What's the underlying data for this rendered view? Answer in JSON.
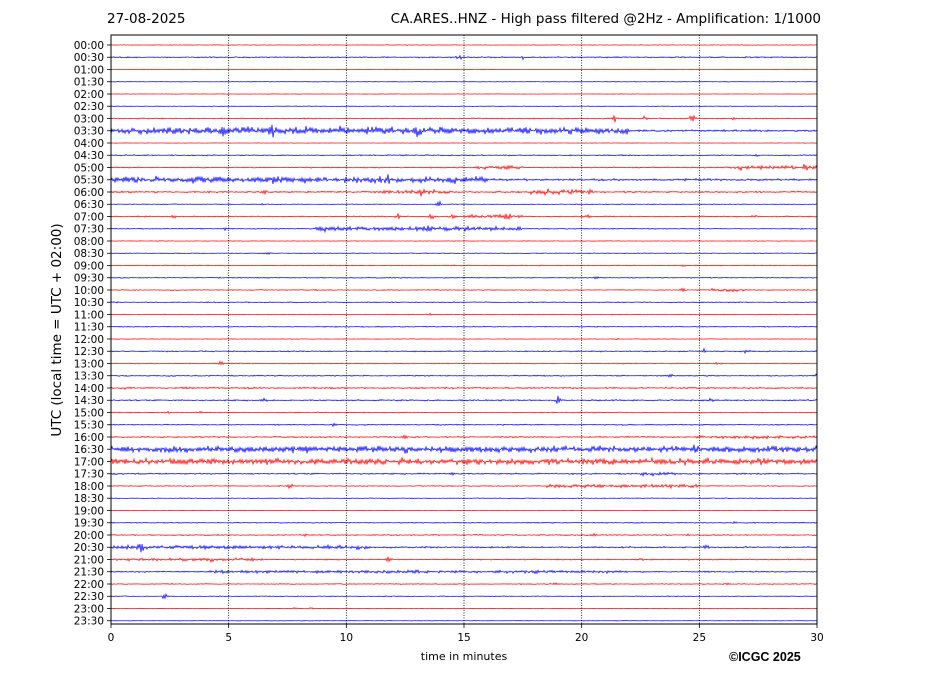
{
  "header": {
    "date": "27-08-2025",
    "title": "CA.ARES..HNZ - High pass filtered @2Hz - Amplification: 1/1000"
  },
  "footer": {
    "copyright": "©ICGC 2025"
  },
  "chart_data": {
    "type": "line",
    "title": "CA.ARES..HNZ - High pass filtered @2Hz - Amplification: 1/1000",
    "xlabel": "time in minutes",
    "ylabel": "UTC (local time = UTC + 02:00)",
    "xlim": [
      0,
      30
    ],
    "x_ticks": [
      "0",
      "5",
      "10",
      "15",
      "20",
      "25",
      "30"
    ],
    "y_ticks": [
      "00:00",
      "00:30",
      "01:00",
      "01:30",
      "02:00",
      "02:30",
      "03:00",
      "03:30",
      "04:00",
      "04:30",
      "05:00",
      "05:30",
      "06:00",
      "06:30",
      "07:00",
      "07:30",
      "08:00",
      "08:30",
      "09:00",
      "09:30",
      "10:00",
      "10:30",
      "11:00",
      "11:30",
      "12:00",
      "12:30",
      "13:00",
      "13:30",
      "14:00",
      "14:30",
      "15:00",
      "15:30",
      "16:00",
      "16:30",
      "17:00",
      "17:30",
      "18:00",
      "18:30",
      "19:00",
      "19:30",
      "20:00",
      "20:30",
      "21:00",
      "21:30",
      "22:00",
      "22:30",
      "23:00",
      "23:30"
    ],
    "grid": {
      "vertical_dotted_at": [
        5,
        10,
        15,
        20,
        25
      ]
    },
    "colors": {
      "even_rows": "#ff0000",
      "odd_rows": "#0000ff"
    },
    "traces": [
      {
        "row": "00:00",
        "noise": 0.3,
        "events": []
      },
      {
        "row": "00:30",
        "noise": 0.6,
        "events": [
          [
            14.8,
            3
          ],
          [
            17.5,
            2.5
          ]
        ]
      },
      {
        "row": "01:00",
        "noise": 0.2,
        "events": []
      },
      {
        "row": "01:30",
        "noise": 0.3,
        "events": []
      },
      {
        "row": "02:00",
        "noise": 0.2,
        "events": []
      },
      {
        "row": "02:30",
        "noise": 0.3,
        "events": []
      },
      {
        "row": "03:00",
        "noise": 0.6,
        "events": [
          [
            21.4,
            4
          ],
          [
            22.7,
            3
          ],
          [
            24.7,
            7
          ],
          [
            26.5,
            2
          ]
        ]
      },
      {
        "row": "03:30",
        "noise": 1.0,
        "events": [
          [
            2.5,
            3.5
          ],
          [
            4.8,
            4.5
          ],
          [
            6.8,
            8
          ],
          [
            8.4,
            5
          ],
          [
            9.7,
            4.5
          ],
          [
            11.3,
            3.5
          ],
          [
            13.0,
            3.5
          ]
        ],
        "bursts": [
          [
            0,
            22,
            3
          ]
        ]
      },
      {
        "row": "04:00",
        "noise": 0.2,
        "events": []
      },
      {
        "row": "04:30",
        "noise": 0.6,
        "events": [
          [
            27.5,
            2
          ]
        ]
      },
      {
        "row": "05:00",
        "noise": 0.6,
        "events": [
          [
            26.8,
            2.5
          ],
          [
            29.5,
            2.5
          ]
        ],
        "bursts": [
          [
            15.5,
            17.5,
            1.3
          ],
          [
            26,
            30,
            1.6
          ]
        ]
      },
      {
        "row": "05:30",
        "noise": 1.0,
        "events": [
          [
            4.5,
            3
          ],
          [
            7.0,
            3
          ],
          [
            11.8,
            3
          ]
        ],
        "bursts": [
          [
            0,
            16,
            2.6
          ]
        ]
      },
      {
        "row": "06:00",
        "noise": 0.8,
        "events": [
          [
            6.5,
            2
          ],
          [
            13.2,
            4
          ],
          [
            18.5,
            2.5
          ]
        ],
        "bursts": [
          [
            11.5,
            14.5,
            1.5
          ],
          [
            17.8,
            20.5,
            2.0
          ]
        ]
      },
      {
        "row": "06:30",
        "noise": 0.4,
        "events": [
          [
            13.9,
            5
          ],
          [
            6.5,
            1.5
          ]
        ]
      },
      {
        "row": "07:00",
        "noise": 0.6,
        "events": [
          [
            2.6,
            4
          ],
          [
            12.2,
            3.5
          ],
          [
            13.6,
            4
          ],
          [
            14.5,
            3
          ],
          [
            16.8,
            3
          ],
          [
            20.2,
            2.5
          ],
          [
            27.3,
            2
          ]
        ],
        "bursts": [
          [
            15,
            17.5,
            1.6
          ]
        ]
      },
      {
        "row": "07:30",
        "noise": 0.5,
        "events": [
          [
            4.8,
            2.5
          ],
          [
            9.0,
            2.5
          ],
          [
            13.5,
            3
          ]
        ],
        "bursts": [
          [
            8.7,
            17.5,
            1.9
          ]
        ]
      },
      {
        "row": "08:00",
        "noise": 0.3,
        "events": []
      },
      {
        "row": "08:30",
        "noise": 0.4,
        "events": [
          [
            6.7,
            1.5
          ]
        ]
      },
      {
        "row": "09:00",
        "noise": 0.5,
        "events": [
          [
            24.3,
            1.5
          ]
        ]
      },
      {
        "row": "09:30",
        "noise": 0.5,
        "events": [
          [
            20.6,
            1.5
          ]
        ]
      },
      {
        "row": "10:00",
        "noise": 0.5,
        "events": [
          [
            24.3,
            2
          ]
        ],
        "bursts": [
          [
            25.5,
            27,
            1.1
          ]
        ]
      },
      {
        "row": "10:30",
        "noise": 0.5,
        "events": [
          [
            0.2,
            1.5
          ]
        ]
      },
      {
        "row": "11:00",
        "noise": 0.4,
        "events": [
          [
            13.5,
            1.5
          ]
        ]
      },
      {
        "row": "11:30",
        "noise": 0.5,
        "events": []
      },
      {
        "row": "12:00",
        "noise": 0.3,
        "events": [
          [
            21.5,
            1.2
          ]
        ]
      },
      {
        "row": "12:30",
        "noise": 0.6,
        "events": [
          [
            25.2,
            3
          ],
          [
            27.0,
            2.5
          ],
          [
            20.8,
            1.5
          ]
        ]
      },
      {
        "row": "13:00",
        "noise": 0.5,
        "events": [
          [
            4.7,
            2.5
          ],
          [
            25.8,
            1.5
          ]
        ]
      },
      {
        "row": "13:30",
        "noise": 0.6,
        "events": [
          [
            23.8,
            2
          ],
          [
            30,
            2.5
          ]
        ]
      },
      {
        "row": "14:00",
        "noise": 0.8,
        "events": [
          [
            0.5,
            3
          ],
          [
            3.1,
            2
          ]
        ]
      },
      {
        "row": "14:30",
        "noise": 0.7,
        "events": [
          [
            19.0,
            6
          ],
          [
            25.5,
            2.5
          ],
          [
            12.3,
            1.5
          ],
          [
            6.5,
            1.5
          ]
        ]
      },
      {
        "row": "15:00",
        "noise": 0.5,
        "events": [
          [
            2.4,
            1.5
          ],
          [
            3.8,
            1.5
          ]
        ]
      },
      {
        "row": "15:30",
        "noise": 0.6,
        "events": [
          [
            9.5,
            1.5
          ]
        ]
      },
      {
        "row": "16:00",
        "noise": 0.7,
        "events": [
          [
            12.5,
            2
          ],
          [
            25,
            1.5
          ]
        ],
        "bursts": [
          [
            25,
            30,
            1.1
          ]
        ]
      },
      {
        "row": "16:30",
        "noise": 1.2,
        "events": [
          [
            8.3,
            2.5
          ],
          [
            12.5,
            2.5
          ],
          [
            24.8,
            2.8
          ]
        ],
        "bursts": [
          [
            0,
            30,
            2.2
          ]
        ]
      },
      {
        "row": "17:00",
        "noise": 1.2,
        "events": [
          [
            0.8,
            2.5
          ],
          [
            12.3,
            2.5
          ],
          [
            27.6,
            2
          ]
        ],
        "bursts": [
          [
            0,
            30,
            2.2
          ]
        ]
      },
      {
        "row": "17:30",
        "noise": 0.7,
        "events": [
          [
            0.2,
            2
          ],
          [
            14.5,
            2
          ],
          [
            19.7,
            1.5
          ]
        ],
        "bursts": [
          [
            22.5,
            24,
            1.2
          ]
        ]
      },
      {
        "row": "18:00",
        "noise": 0.5,
        "events": [
          [
            7.6,
            3.5
          ]
        ],
        "bursts": [
          [
            18.5,
            25,
            1.4
          ]
        ]
      },
      {
        "row": "18:30",
        "noise": 0.4,
        "events": [
          [
            24.5,
            1.2
          ]
        ]
      },
      {
        "row": "19:00",
        "noise": 0.3,
        "events": []
      },
      {
        "row": "19:30",
        "noise": 0.5,
        "events": [
          [
            26.5,
            1.5
          ]
        ]
      },
      {
        "row": "20:00",
        "noise": 0.6,
        "events": [
          [
            8.3,
            1.5
          ],
          [
            20.5,
            2
          ],
          [
            24.5,
            1.5
          ]
        ]
      },
      {
        "row": "20:30",
        "noise": 0.8,
        "events": [
          [
            1.3,
            7
          ],
          [
            10.5,
            2.5
          ],
          [
            25.3,
            2
          ]
        ],
        "bursts": [
          [
            0,
            11,
            1.3
          ]
        ]
      },
      {
        "row": "21:00",
        "noise": 0.6,
        "events": [
          [
            11.8,
            5
          ],
          [
            22.5,
            2
          ],
          [
            4.2,
            1.5
          ]
        ],
        "bursts": [
          [
            0,
            6.5,
            1.1
          ]
        ]
      },
      {
        "row": "21:30",
        "noise": 0.7,
        "events": [
          [
            13.0,
            1.5
          ]
        ],
        "bursts": [
          [
            4,
            22,
            0.9
          ]
        ]
      },
      {
        "row": "22:00",
        "noise": 0.5,
        "events": [
          [
            18.9,
            1.5
          ],
          [
            26.2,
            1.3
          ]
        ]
      },
      {
        "row": "22:30",
        "noise": 0.4,
        "events": [
          [
            2.3,
            5
          ],
          [
            0.6,
            1.5
          ]
        ]
      },
      {
        "row": "23:00",
        "noise": 0.3,
        "events": [
          [
            7.8,
            1.5
          ],
          [
            8.5,
            1.5
          ]
        ]
      },
      {
        "row": "23:30",
        "noise": 0.2,
        "events": []
      }
    ]
  }
}
